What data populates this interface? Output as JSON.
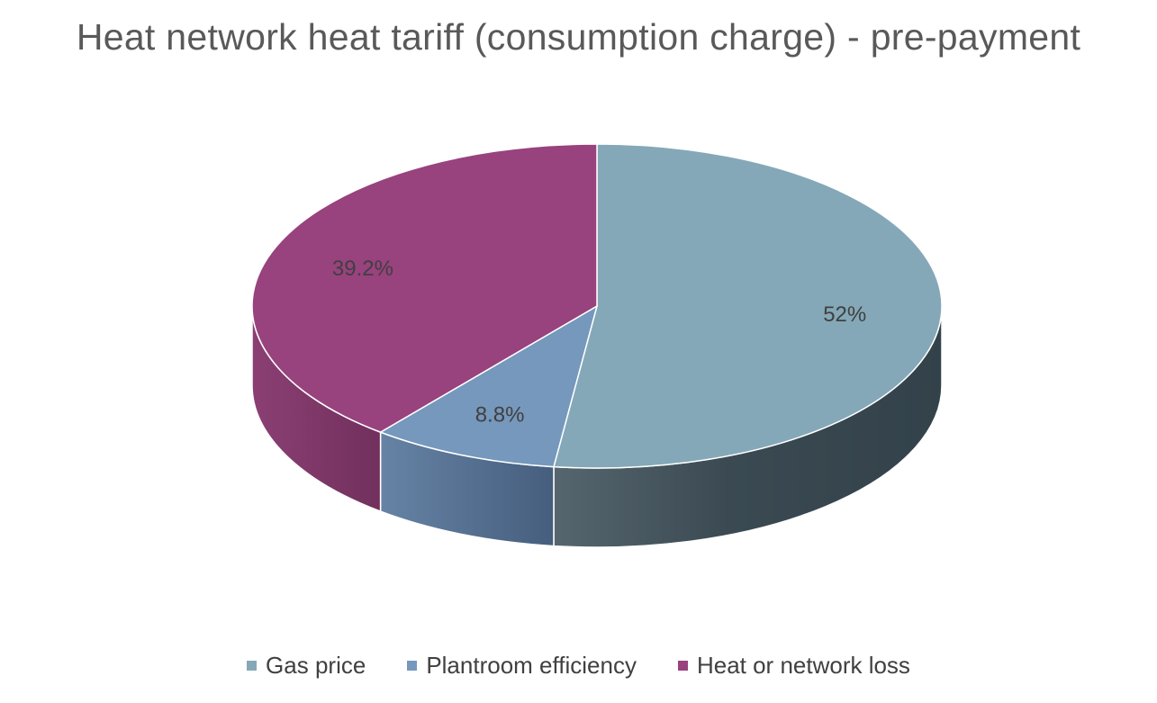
{
  "chart_data": {
    "type": "pie",
    "title": "Heat network heat tariff (consumption charge) - pre-payment",
    "slices": [
      {
        "label": "Gas price",
        "value": 52,
        "display": "52%",
        "color": "#84A8B8"
      },
      {
        "label": "Plantroom efficiency",
        "value": 8.8,
        "display": "8.8%",
        "color": "#7598BC"
      },
      {
        "label": "Heat or network loss",
        "value": 39.2,
        "display": "39.2%",
        "color": "#98427E"
      }
    ],
    "legend_position": "bottom",
    "style": "3d"
  }
}
